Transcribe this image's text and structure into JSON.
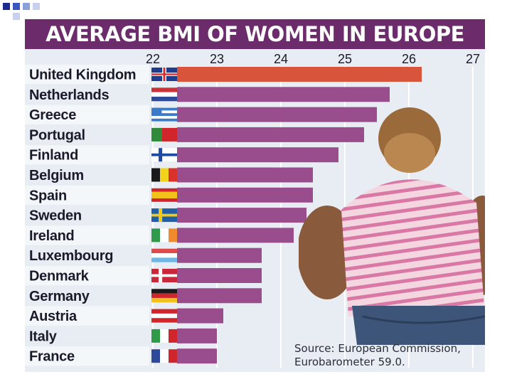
{
  "title": "AVERAGE BMI OF WOMEN IN EUROPE",
  "source": {
    "line1": "Source: European Commission,",
    "line2": "Eurobarometer 59.0."
  },
  "colors": {
    "highlight_bar": "#d8543a",
    "bar": "#9a4d8c",
    "title_bg": "#6c2c6c"
  },
  "chart_data": {
    "type": "bar",
    "orientation": "horizontal",
    "title": "AVERAGE BMI OF WOMEN IN EUROPE",
    "xlabel": "",
    "ylabel": "",
    "xlim": [
      22,
      27
    ],
    "xticks": [
      "22",
      "23",
      "24",
      "25",
      "26",
      "27"
    ],
    "grid": true,
    "categories": [
      "United Kingdom",
      "Netherlands",
      "Greece",
      "Portugal",
      "Finland",
      "Belgium",
      "Spain",
      "Sweden",
      "Ireland",
      "Luxembourg",
      "Denmark",
      "Germany",
      "Austria",
      "Italy",
      "France"
    ],
    "values": [
      26.2,
      25.7,
      25.5,
      25.3,
      24.9,
      24.5,
      24.5,
      24.4,
      24.2,
      23.7,
      23.7,
      23.7,
      23.1,
      23.0,
      23.0
    ],
    "highlight": "United Kingdom",
    "flags": [
      "uk-flag",
      "netherlands-flag",
      "greece-flag",
      "portugal-flag",
      "finland-flag",
      "belgium-flag",
      "spain-flag",
      "sweden-flag",
      "ireland-flag",
      "luxembourg-flag",
      "denmark-flag",
      "germany-flag",
      "austria-flag",
      "italy-flag",
      "france-flag"
    ]
  }
}
